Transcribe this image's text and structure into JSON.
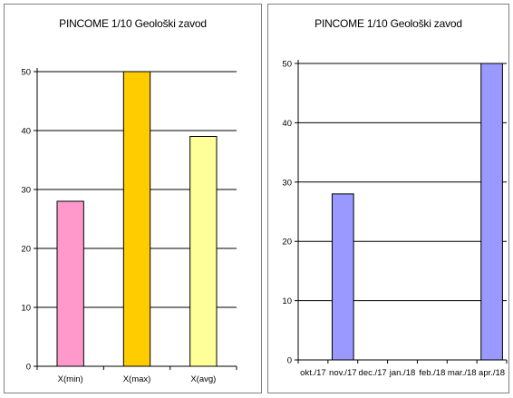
{
  "colors": {
    "axis": "#000000",
    "grid": "#000000",
    "bar_outline": "#000000",
    "xmin": "#ff99cc",
    "xmax": "#ffcc00",
    "xavg": "#ffff99",
    "monthly": "#9999ff"
  },
  "chart_data": [
    {
      "type": "bar",
      "title": "PINCOME 1/10 Geološki zavod",
      "categories": [
        "X(min)",
        "X(max)",
        "X(avg)"
      ],
      "values": [
        28,
        50,
        39
      ],
      "bar_colors": [
        "#ff99cc",
        "#ffcc00",
        "#ffff99"
      ],
      "ylim": [
        0,
        50
      ],
      "yticks": [
        "0",
        "10",
        "20",
        "30",
        "40",
        "50"
      ],
      "xlabel": "",
      "ylabel": "",
      "grid": true,
      "legend": "none"
    },
    {
      "type": "bar",
      "title": "PINCOME 1/10 Geološki zavod",
      "categories": [
        "okt./17",
        "nov./17",
        "dec./17",
        "jan./18",
        "feb./18",
        "mar./18",
        "apr./18"
      ],
      "values": [
        null,
        28,
        null,
        null,
        null,
        null,
        50
      ],
      "bar_color": "#9999ff",
      "ylim": [
        0,
        50
      ],
      "yticks": [
        "0",
        "10",
        "20",
        "30",
        "40",
        "50"
      ],
      "xlabel": "",
      "ylabel": "",
      "grid": true,
      "legend": "none"
    }
  ]
}
